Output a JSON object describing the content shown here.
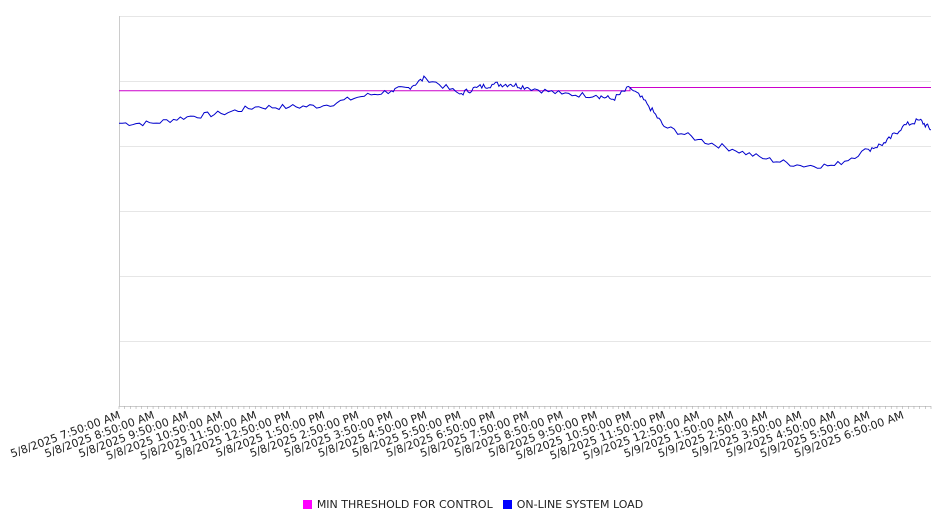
{
  "chart_data": {
    "type": "line",
    "x_labels": [
      "5/8/2025 7:50:00 AM",
      "5/8/2025 8:50:00 AM",
      "5/8/2025 9:50:00 AM",
      "5/8/2025 10:50:00 AM",
      "5/8/2025 11:50:00 AM",
      "5/8/2025 12:50:00 PM",
      "5/8/2025 1:50:00 PM",
      "5/8/2025 2:50:00 PM",
      "5/8/2025 3:50:00 PM",
      "5/8/2025 4:50:00 PM",
      "5/8/2025 5:50:00 PM",
      "5/8/2025 6:50:00 PM",
      "5/8/2025 7:50:00 PM",
      "5/8/2025 8:50:00 PM",
      "5/8/2025 9:50:00 PM",
      "5/8/2025 10:50:00 PM",
      "5/8/2025 11:50:00 PM",
      "5/9/2025 12:50:00 AM",
      "5/9/2025 1:50:00 AM",
      "5/9/2025 2:50:00 AM",
      "5/9/2025 3:50:00 AM",
      "5/9/2025 4:50:00 AM",
      "5/9/2025 5:50:00 AM",
      "5/9/2025 6:50:00 AM"
    ],
    "y_axis": {
      "ylim": [
        0,
        6
      ],
      "ticks_visible": false,
      "grid": true
    },
    "series": [
      {
        "name": "MIN THRESHOLD FOR CONTROL",
        "color": "#cc00cc",
        "x": [
          "5/8/2025 7:50:00 AM",
          "5/8/2025 10:50:00 PM",
          "5/8/2025 10:50:00 PM",
          "5/9/2025 7:40:00 AM"
        ],
        "values": [
          4.85,
          4.85,
          4.9,
          4.9
        ]
      },
      {
        "name": "ON-LINE SYSTEM LOAD",
        "color": "#0000cc",
        "x": [
          "5/8/2025 7:50:00 AM",
          "5/8/2025 8:50:00 AM",
          "5/8/2025 9:50:00 AM",
          "5/8/2025 10:50:00 AM",
          "5/8/2025 11:50:00 AM",
          "5/8/2025 12:50:00 PM",
          "5/8/2025 1:50:00 PM",
          "5/8/2025 2:50:00 PM",
          "5/8/2025 3:50:00 PM",
          "5/8/2025 4:20:00 PM",
          "5/8/2025 4:50:00 PM",
          "5/8/2025 5:50:00 PM",
          "5/8/2025 6:20:00 PM",
          "5/8/2025 6:50:00 PM",
          "5/8/2025 7:20:00 PM",
          "5/8/2025 7:50:00 PM",
          "5/8/2025 8:50:00 PM",
          "5/8/2025 9:50:00 PM",
          "5/8/2025 10:20:00 PM",
          "5/8/2025 10:50:00 PM",
          "5/8/2025 11:20:00 PM",
          "5/8/2025 11:50:00 PM",
          "5/9/2025 12:50:00 AM",
          "5/9/2025 1:50:00 AM",
          "5/9/2025 2:50:00 AM",
          "5/9/2025 3:50:00 AM",
          "5/9/2025 4:50:00 AM",
          "5/9/2025 5:50:00 AM",
          "5/9/2025 6:20:00 AM",
          "5/9/2025 6:50:00 AM",
          "5/9/2025 7:20:00 AM",
          "5/9/2025 7:40:00 AM"
        ],
        "values": [
          4.35,
          4.35,
          4.45,
          4.5,
          4.6,
          4.6,
          4.62,
          4.75,
          4.85,
          4.9,
          5.05,
          4.8,
          4.9,
          4.95,
          4.95,
          4.9,
          4.8,
          4.78,
          4.72,
          4.9,
          4.65,
          4.3,
          4.1,
          3.95,
          3.8,
          3.7,
          3.7,
          3.95,
          4.05,
          4.3,
          4.4,
          4.25
        ]
      }
    ]
  },
  "legend": {
    "items": [
      {
        "label": "MIN THRESHOLD FOR CONTROL",
        "color": "#ff00ff"
      },
      {
        "label": "ON-LINE SYSTEM LOAD",
        "color": "#0000ff"
      }
    ]
  }
}
